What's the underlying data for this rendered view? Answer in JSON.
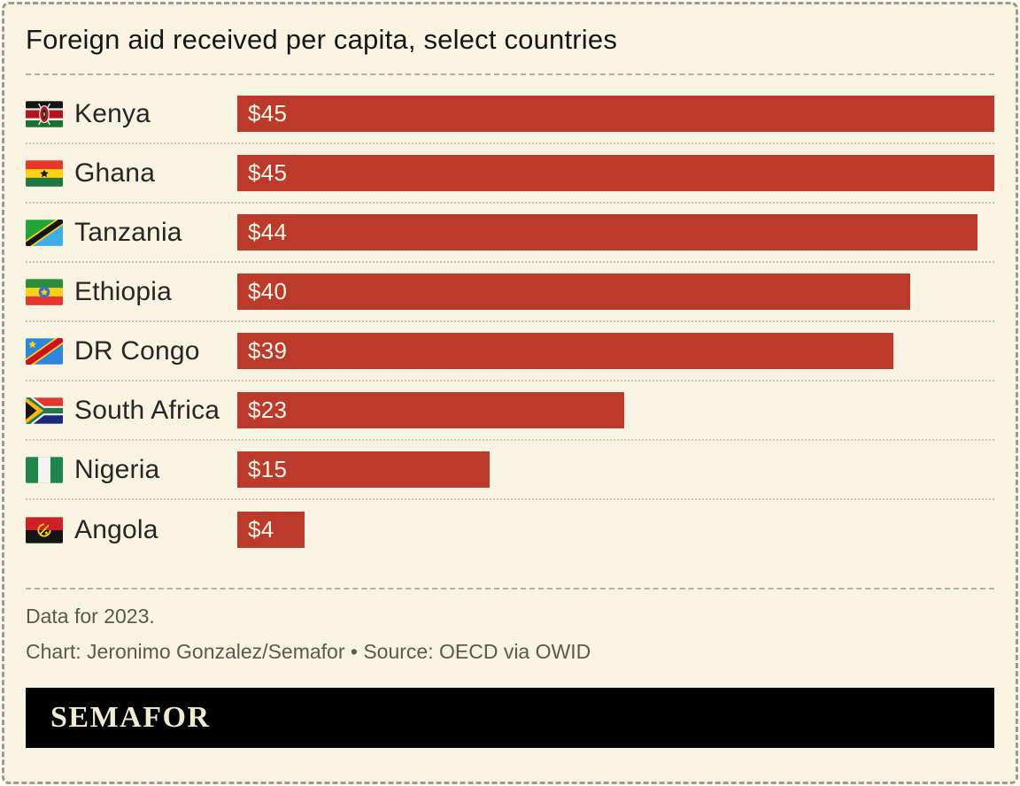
{
  "header": {
    "title": "Foreign aid received per capita, select countries"
  },
  "chart_data": {
    "type": "bar",
    "orientation": "horizontal",
    "title": "Foreign aid received per capita, select countries",
    "categories": [
      "Kenya",
      "Ghana",
      "Tanzania",
      "Ethiopia",
      "DR Congo",
      "South Africa",
      "Nigeria",
      "Angola"
    ],
    "values": [
      45,
      45,
      44,
      40,
      39,
      23,
      15,
      4
    ],
    "value_labels": [
      "$45",
      "$45",
      "$44",
      "$40",
      "$39",
      "$23",
      "$15",
      "$4"
    ],
    "flag_icons": [
      "kenya-flag-icon",
      "ghana-flag-icon",
      "tanzania-flag-icon",
      "ethiopia-flag-icon",
      "dr-congo-flag-icon",
      "south-africa-flag-icon",
      "nigeria-flag-icon",
      "angola-flag-icon"
    ],
    "value_unit": "US$ per capita",
    "xlim": [
      0,
      45
    ],
    "bar_color": "#bb3a2b",
    "grid": "off",
    "legend": "none"
  },
  "footer": {
    "note": "Data for 2023.",
    "credit": "Chart: Jeronimo Gonzalez/Semafor • Source: OECD via OWID",
    "logo_text": "SEMAFOR"
  },
  "colors": {
    "background": "#f8f4e1",
    "bar": "#bb3a2b",
    "bar_label": "#fbf5e6",
    "title_text": "#161616",
    "footer_text": "#5b594f",
    "banner_background": "#020202",
    "banner_text": "#f1ebd2",
    "separator": "#b5b1a2"
  }
}
